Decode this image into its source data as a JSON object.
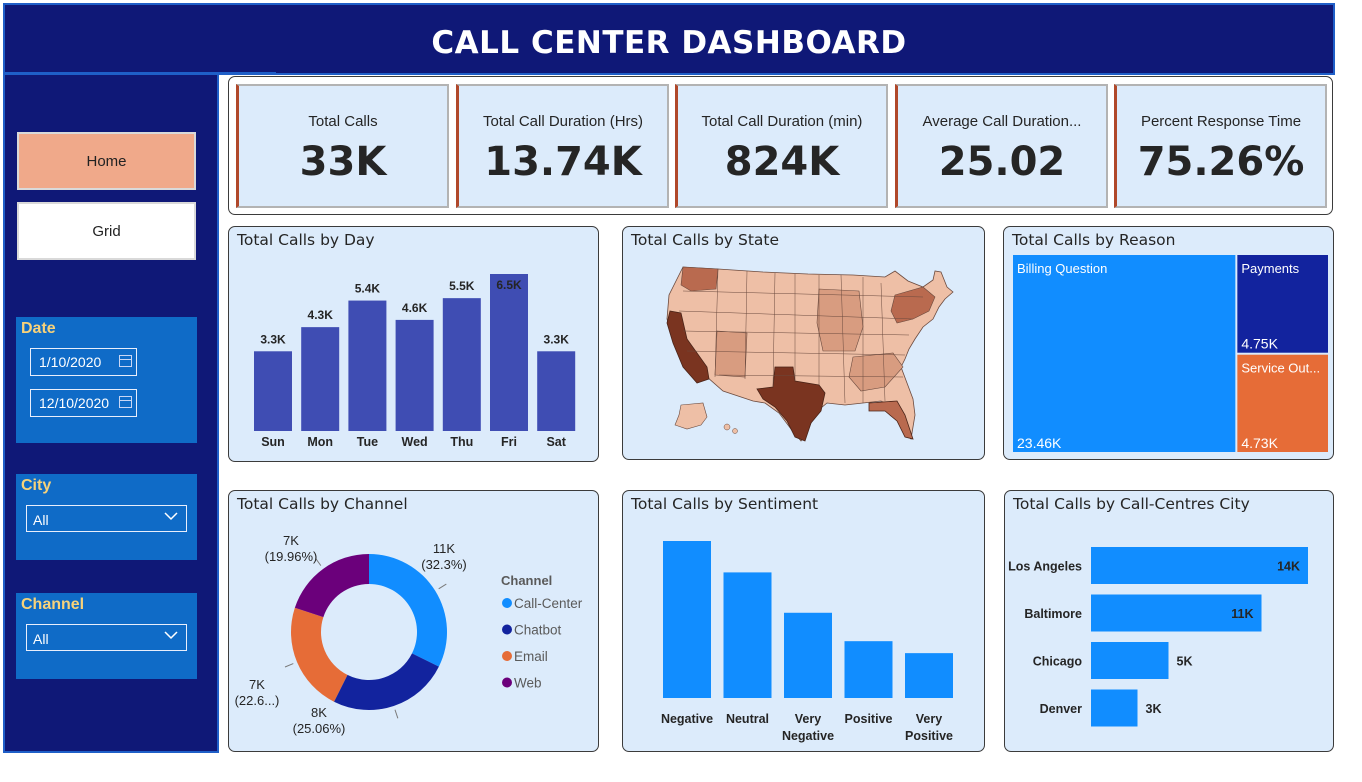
{
  "header": {
    "title": "CALL CENTER DASHBOARD"
  },
  "nav": {
    "home_label": "Home",
    "grid_label": "Grid"
  },
  "filters": {
    "date": {
      "title": "Date",
      "start": "1/10/2020",
      "end": "12/10/2020"
    },
    "city": {
      "title": "City",
      "value": "All"
    },
    "channel": {
      "title": "Channel",
      "value": "All"
    }
  },
  "kpis": [
    {
      "label": "Total Calls",
      "value": "33K"
    },
    {
      "label": "Total Call Duration (Hrs)",
      "value": "13.74K"
    },
    {
      "label": "Total Call Duration (min)",
      "value": "824K"
    },
    {
      "label": "Average Call Duration...",
      "value": "25.02"
    },
    {
      "label": "Percent Response Time",
      "value": "75.26%"
    }
  ],
  "panels": {
    "by_day": "Total Calls by Day",
    "by_state": "Total Calls by State",
    "by_reason": "Total Calls by Reason",
    "by_channel": "Total Calls by Channel",
    "by_sentiment": "Total Calls by Sentiment",
    "by_city": "Total Calls by Call-Centres City"
  },
  "colors": {
    "header_bg": "#0f1877",
    "panel_bg": "#dcebfb",
    "bar_day": "#3f4db3",
    "blue": "#118dff",
    "navy": "#12239e",
    "orange": "#e66c37",
    "purple": "#6b007b",
    "map_dark": "#7a3420",
    "map_mid": "#b96a4f",
    "map_light": "#eebfa6"
  },
  "chart_data": [
    {
      "id": "day",
      "type": "bar",
      "title": "Total Calls by Day",
      "categories": [
        "Sun",
        "Mon",
        "Tue",
        "Wed",
        "Thu",
        "Fri",
        "Sat"
      ],
      "values": [
        3.3,
        4.3,
        5.4,
        4.6,
        5.5,
        6.5,
        3.3
      ],
      "labels": [
        "3.3K",
        "4.3K",
        "5.4K",
        "4.6K",
        "5.5K",
        "6.5K",
        "3.3K"
      ],
      "ylim": [
        0,
        6.5
      ]
    },
    {
      "id": "reason",
      "type": "treemap",
      "title": "Total Calls by Reason",
      "items": [
        {
          "name": "Billing Question",
          "value": 23.46,
          "label": "23.46K"
        },
        {
          "name": "Payments",
          "value": 4.75,
          "label": "4.75K"
        },
        {
          "name": "Service Out...",
          "value": 4.73,
          "label": "4.73K"
        }
      ]
    },
    {
      "id": "channel",
      "type": "pie",
      "title": "Total Calls by Channel",
      "legend_title": "Channel",
      "items": [
        {
          "name": "Call-Center",
          "value": 32.3,
          "count": "11K",
          "pct": "(32.3%)"
        },
        {
          "name": "Chatbot",
          "value": 25.06,
          "count": "8K",
          "pct": "(25.06%)"
        },
        {
          "name": "Email",
          "value": 22.6,
          "count": "7K",
          "pct": "(22.6...)"
        },
        {
          "name": "Web",
          "value": 19.96,
          "count": "7K",
          "pct": "(19.96%)"
        }
      ]
    },
    {
      "id": "sentiment",
      "type": "bar",
      "title": "Total Calls by Sentiment",
      "categories": [
        [
          "Negative"
        ],
        [
          "Neutral"
        ],
        [
          "Very",
          "Negative"
        ],
        [
          "Positive"
        ],
        [
          "Very",
          "Positive"
        ]
      ],
      "values": [
        10.5,
        8.4,
        5.7,
        3.8,
        3.0
      ],
      "ylim": [
        0,
        10.5
      ]
    },
    {
      "id": "city",
      "type": "bar",
      "title": "Total Calls by Call-Centres City",
      "orientation": "horizontal",
      "categories": [
        "Los Angeles",
        "Baltimore",
        "Chicago",
        "Denver"
      ],
      "values": [
        14,
        11,
        5,
        3
      ],
      "labels": [
        "14K",
        "11K",
        "5K",
        "3K"
      ],
      "xlim": [
        0,
        14
      ]
    }
  ]
}
